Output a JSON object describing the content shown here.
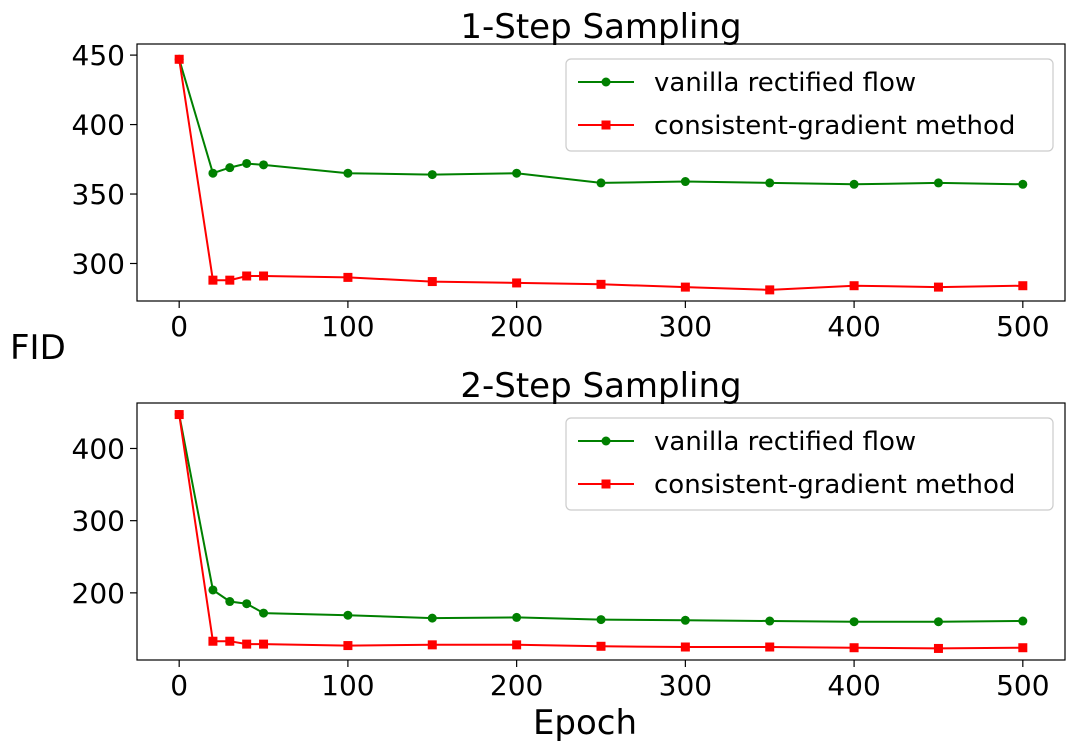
{
  "figure": {
    "ylabel": "FID",
    "xlabel": "Epoch"
  },
  "chart_data": [
    {
      "type": "line",
      "title": "1-Step Sampling",
      "x": [
        0,
        20,
        30,
        40,
        50,
        100,
        150,
        200,
        250,
        300,
        350,
        400,
        450,
        500
      ],
      "xlim": [
        -25,
        525
      ],
      "ylim": [
        273,
        458
      ],
      "xticks": [
        0,
        100,
        200,
        300,
        400,
        500
      ],
      "yticks": [
        300,
        350,
        400,
        450
      ],
      "series": [
        {
          "name": "vanilla rectified flow",
          "color": "#008000",
          "marker": "circle",
          "values": [
            447,
            365,
            369,
            372,
            371,
            365,
            364,
            365,
            358,
            359,
            358,
            357,
            358,
            357
          ]
        },
        {
          "name": "consistent-gradient method",
          "color": "#ff0000",
          "marker": "square",
          "values": [
            447,
            288,
            288,
            291,
            291,
            290,
            287,
            286,
            285,
            283,
            281,
            284,
            283,
            284
          ]
        }
      ],
      "legend_position": "top-right",
      "grid": false
    },
    {
      "type": "line",
      "title": "2-Step Sampling",
      "x": [
        0,
        20,
        30,
        40,
        50,
        100,
        150,
        200,
        250,
        300,
        350,
        400,
        450,
        500
      ],
      "xlim": [
        -25,
        525
      ],
      "ylim": [
        107,
        463
      ],
      "xticks": [
        0,
        100,
        200,
        300,
        400,
        500
      ],
      "yticks": [
        200,
        300,
        400
      ],
      "series": [
        {
          "name": "vanilla rectified flow",
          "color": "#008000",
          "marker": "circle",
          "values": [
            447,
            204,
            188,
            185,
            172,
            169,
            165,
            166,
            163,
            162,
            161,
            160,
            160,
            161
          ]
        },
        {
          "name": "consistent-gradient method",
          "color": "#ff0000",
          "marker": "square",
          "values": [
            447,
            133,
            133,
            129,
            129,
            127,
            128,
            128,
            126,
            125,
            125,
            124,
            123,
            124
          ]
        }
      ],
      "legend_position": "top-right",
      "grid": false
    }
  ]
}
